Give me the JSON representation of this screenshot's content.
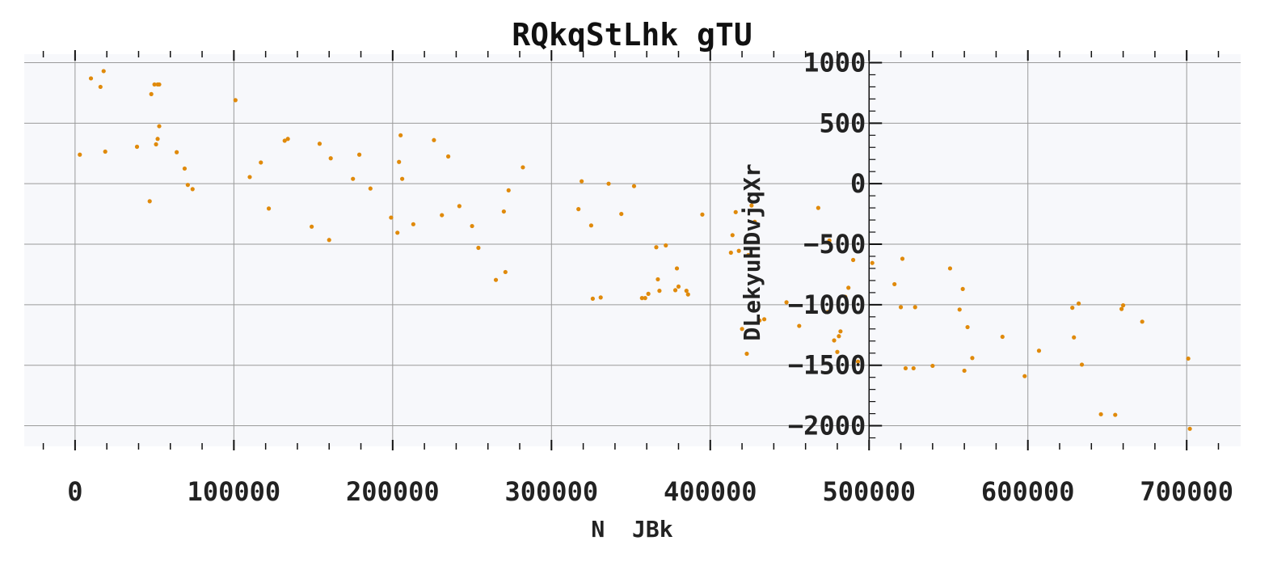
{
  "chart_data": {
    "type": "scatter",
    "title": "RQkqStLhk gTU",
    "xlabel": "N  JBk",
    "ylabel": "DLekyuHDvjqXr",
    "xlim": [
      -32000,
      734000
    ],
    "ylim": [
      -2170,
      1070
    ],
    "x_ticks": [
      0,
      100000,
      200000,
      300000,
      400000,
      500000,
      600000,
      700000
    ],
    "x_tick_labels": [
      "0",
      "100000",
      "200000",
      "300000",
      "400000",
      "500000",
      "600000",
      "700000"
    ],
    "y_ticks": [
      1000,
      500,
      0,
      -500,
      -1000,
      -1500,
      -2000
    ],
    "y_tick_labels": [
      "1000",
      "500",
      "0",
      "−500",
      "−1000",
      "−1500",
      "−2000"
    ],
    "y_axis_position_x": 500000,
    "grid": true,
    "colors": {
      "points": "#e08a0b",
      "background": "#f7f8fb",
      "grid": "#9a9a9a"
    },
    "series": [
      {
        "x": [
          3000,
          10000,
          16000,
          18000,
          19000,
          39000,
          47000,
          48000,
          50000,
          51000,
          52000,
          52000,
          53000,
          53000,
          64000,
          69000,
          71000,
          74000,
          101000,
          110000,
          117000,
          122000,
          132000,
          134000,
          149000,
          154000,
          160000,
          161000,
          175000,
          179000,
          186000,
          199000,
          203000,
          204000,
          205000,
          206000,
          213000,
          226000,
          231000,
          235000,
          242000,
          250000,
          254000,
          265000,
          270000,
          271000,
          273000,
          282000,
          317000,
          319000,
          325000,
          326000,
          331000,
          336000,
          344000,
          352000,
          357000,
          359000,
          361000,
          366000,
          367000,
          368000,
          372000,
          378000,
          379000,
          380000,
          385000,
          386000,
          395000,
          413000,
          414000,
          416000,
          418000,
          420000,
          423000,
          424000,
          426000,
          428000,
          431000,
          434000,
          448000,
          456000,
          468000,
          474000,
          475000,
          478000,
          480000,
          481000,
          482000,
          485000,
          487000,
          490000,
          493000,
          502000,
          516000,
          520000,
          521000,
          523000,
          528000,
          529000,
          540000,
          551000,
          557000,
          559000,
          560000,
          562000,
          565000,
          584000,
          598000,
          607000,
          628000,
          629000,
          632000,
          634000,
          646000,
          655000,
          659000,
          660000,
          672000,
          701000,
          702000
        ],
        "y": [
          240,
          870,
          800,
          930,
          265,
          305,
          -145,
          740,
          820,
          325,
          820,
          370,
          475,
          820,
          260,
          125,
          -10,
          -45,
          690,
          55,
          175,
          -205,
          355,
          370,
          -355,
          330,
          -465,
          210,
          40,
          240,
          -40,
          -280,
          -405,
          180,
          400,
          40,
          -335,
          360,
          -260,
          225,
          -185,
          -350,
          -530,
          -795,
          -230,
          -730,
          -55,
          135,
          -210,
          20,
          -345,
          -950,
          -940,
          0,
          -250,
          -20,
          -945,
          -945,
          -910,
          -525,
          -790,
          -885,
          -510,
          -880,
          -700,
          -850,
          -885,
          -915,
          -255,
          -570,
          -425,
          -235,
          -555,
          -1200,
          -1405,
          -590,
          -180,
          -315,
          -1130,
          -1120,
          -980,
          -1175,
          -200,
          -1060,
          -470,
          -1295,
          -1390,
          -1260,
          -1220,
          -935,
          -860,
          -630,
          -1470,
          -655,
          -830,
          -1020,
          -620,
          -1525,
          -1525,
          -1020,
          -1505,
          -700,
          -1040,
          -870,
          -1545,
          -1185,
          -1440,
          -1265,
          -1590,
          -1380,
          -1025,
          -1270,
          -990,
          -1495,
          -1905,
          -1910,
          -1035,
          -1005,
          -1140,
          -1445,
          -2025
        ]
      }
    ]
  }
}
